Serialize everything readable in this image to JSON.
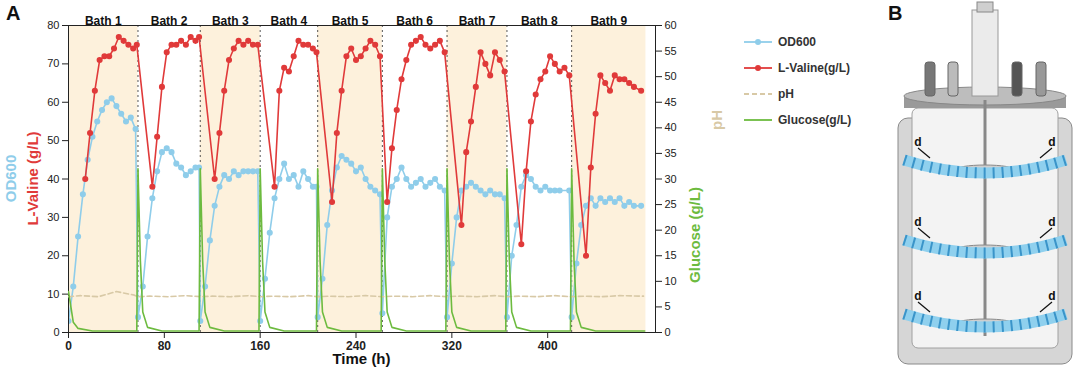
{
  "chart_data": {
    "type": "line",
    "panel_label": "A",
    "x_label": "Time (h)",
    "y_labels": [
      {
        "text": "OD600",
        "color": "#8fcdea"
      },
      {
        "text": "L-Valine (g/L)",
        "color": "#e03a3a"
      }
    ],
    "y2_labels": [
      {
        "text": "Glucose (g/L)",
        "color": "#6dbb3f"
      },
      {
        "text": "pH",
        "color": "#d8c9a6"
      }
    ],
    "xlim": [
      0,
      490
    ],
    "xticks": [
      0,
      80,
      160,
      240,
      320,
      400
    ],
    "ylim": [
      0,
      80
    ],
    "yticks": [
      0,
      10,
      20,
      30,
      40,
      50,
      60,
      70,
      80
    ],
    "y2lim": [
      0,
      60
    ],
    "y2ticks": [
      0,
      5,
      10,
      15,
      20,
      25,
      30,
      35,
      40,
      45,
      50,
      55,
      60
    ],
    "legend": "right",
    "batches": [
      {
        "label": "Bath 1",
        "start": 0,
        "end": 58
      },
      {
        "label": "Bath 2",
        "start": 58,
        "end": 110
      },
      {
        "label": "Bath 3",
        "start": 110,
        "end": 160
      },
      {
        "label": "Bath 4",
        "start": 160,
        "end": 208
      },
      {
        "label": "Bath 5",
        "start": 208,
        "end": 262
      },
      {
        "label": "Bath 6",
        "start": 262,
        "end": 316
      },
      {
        "label": "Bath 7",
        "start": 316,
        "end": 366
      },
      {
        "label": "Bath 8",
        "start": 366,
        "end": 420
      },
      {
        "label": "Bath 9",
        "start": 420,
        "end": 482
      }
    ],
    "series": [
      {
        "name": "OD600",
        "color": "#8fcdea",
        "marker": "circle",
        "line_style": "solid",
        "x": [
          0,
          4,
          8,
          12,
          16,
          20,
          24,
          28,
          32,
          36,
          40,
          44,
          48,
          52,
          56,
          58,
          62,
          66,
          70,
          74,
          78,
          82,
          86,
          90,
          94,
          98,
          102,
          106,
          109,
          110,
          114,
          118,
          122,
          126,
          130,
          134,
          138,
          142,
          146,
          150,
          154,
          158,
          160,
          164,
          168,
          172,
          176,
          180,
          184,
          188,
          192,
          196,
          200,
          204,
          207,
          208,
          212,
          216,
          220,
          224,
          228,
          232,
          236,
          240,
          244,
          248,
          252,
          256,
          260,
          262,
          266,
          270,
          274,
          278,
          282,
          286,
          290,
          294,
          298,
          302,
          306,
          310,
          314,
          316,
          320,
          324,
          328,
          332,
          336,
          340,
          344,
          348,
          352,
          356,
          360,
          364,
          366,
          370,
          374,
          378,
          382,
          386,
          390,
          394,
          398,
          402,
          406,
          410,
          418,
          420,
          424,
          428,
          432,
          436,
          440,
          444,
          448,
          452,
          456,
          460,
          464,
          468,
          472,
          478
        ],
        "values": [
          3,
          12,
          25,
          36,
          45,
          51,
          55,
          58,
          60,
          61,
          59,
          57,
          55,
          56,
          53,
          4,
          12,
          25,
          35,
          42,
          47,
          48,
          47,
          44,
          43,
          41,
          42,
          43,
          43,
          3,
          12,
          24,
          33,
          38,
          41,
          40,
          42,
          41,
          42,
          42,
          42,
          42,
          3,
          14,
          26,
          35,
          40,
          44,
          40,
          41,
          38,
          42,
          40,
          38,
          38,
          4,
          14,
          28,
          37,
          43,
          46,
          45,
          44,
          42,
          43,
          40,
          38,
          37,
          36,
          5,
          30,
          38,
          40,
          43,
          40,
          38,
          39,
          40,
          38,
          39,
          40,
          38,
          37,
          4,
          18,
          30,
          37,
          38,
          39,
          38,
          37,
          36,
          37,
          36,
          36,
          35,
          4,
          20,
          28,
          38,
          41,
          40,
          38,
          37,
          38,
          37,
          37,
          37,
          37,
          4,
          18,
          28,
          33,
          35,
          33,
          35,
          34,
          35,
          34,
          35,
          33,
          34,
          33,
          33
        ]
      },
      {
        "name": "L-Valine(g/L)",
        "color": "#e03a3a",
        "marker": "circle",
        "line_style": "solid",
        "x": [
          14,
          18,
          22,
          26,
          30,
          34,
          38,
          42,
          46,
          50,
          54,
          57,
          70,
          74,
          78,
          82,
          86,
          90,
          94,
          98,
          102,
          106,
          109,
          122,
          126,
          130,
          134,
          138,
          142,
          146,
          150,
          154,
          158,
          172,
          176,
          180,
          184,
          188,
          192,
          196,
          200,
          204,
          207,
          220,
          224,
          228,
          232,
          236,
          240,
          244,
          248,
          252,
          256,
          260,
          266,
          270,
          274,
          278,
          282,
          286,
          290,
          294,
          298,
          302,
          306,
          310,
          314,
          328,
          332,
          336,
          340,
          344,
          348,
          352,
          356,
          360,
          364,
          378,
          382,
          386,
          390,
          394,
          398,
          402,
          406,
          410,
          414,
          418,
          432,
          436,
          440,
          444,
          448,
          452,
          456,
          460,
          464,
          468,
          472,
          478
        ],
        "values": [
          40,
          52,
          63,
          71,
          72,
          72,
          74,
          77,
          76,
          75,
          74,
          75,
          38,
          51,
          64,
          73,
          75,
          75,
          76,
          75,
          77,
          76,
          77,
          40,
          52,
          63,
          71,
          74,
          76,
          75,
          76,
          75,
          75,
          38,
          63,
          69,
          68,
          72,
          76,
          75,
          75,
          74,
          73,
          34,
          52,
          63,
          72,
          74,
          71,
          72,
          74,
          76,
          75,
          72,
          34,
          48,
          58,
          66,
          71,
          75,
          76,
          77,
          75,
          74,
          75,
          76,
          73,
          28,
          47,
          55,
          64,
          73,
          70,
          67,
          73,
          71,
          68,
          23,
          42,
          55,
          62,
          66,
          68,
          72,
          70,
          68,
          69,
          67,
          20,
          43,
          57,
          67,
          65,
          63,
          67,
          66,
          66,
          65,
          64,
          63
        ]
      },
      {
        "name": "pH",
        "color": "#d8c9a6",
        "axis": "y2",
        "marker": "none",
        "line_style": "dashed",
        "x": [
          0,
          10,
          25,
          40,
          55,
          58,
          68,
          83,
          98,
          110,
          120,
          135,
          150,
          160,
          170,
          185,
          200,
          208,
          218,
          233,
          248,
          262,
          272,
          287,
          302,
          316,
          326,
          341,
          356,
          366,
          376,
          391,
          406,
          420,
          430,
          445,
          460,
          480
        ],
        "values": [
          7,
          7.2,
          7,
          8,
          7.3,
          7,
          7.1,
          7,
          7.2,
          7,
          7.1,
          7,
          7.2,
          7,
          7.1,
          7,
          7.2,
          7,
          7.1,
          7,
          7.2,
          7,
          7.1,
          7,
          7.2,
          7,
          7.1,
          7,
          7.2,
          7,
          7.1,
          7,
          7.2,
          7,
          7.1,
          7,
          7.2,
          7.1
        ]
      },
      {
        "name": "Glucose(g/L)",
        "color": "#6dbb3f",
        "axis": "y2",
        "marker": "none",
        "line_style": "solid",
        "x": [
          0,
          2,
          4,
          8,
          20,
          57,
          58,
          60,
          62,
          66,
          78,
          109,
          110,
          112,
          114,
          118,
          130,
          159,
          160,
          162,
          164,
          168,
          180,
          207,
          208,
          210,
          212,
          216,
          228,
          261,
          262,
          264,
          266,
          270,
          282,
          315,
          316,
          318,
          320,
          324,
          336,
          365,
          366,
          368,
          370,
          374,
          386,
          419,
          420,
          422,
          424,
          428,
          440,
          481
        ],
        "values": [
          8,
          5,
          2,
          0.8,
          0.3,
          0.3,
          32,
          14,
          4,
          1,
          0.3,
          0.3,
          32,
          14,
          4,
          1,
          0.3,
          0.3,
          32,
          14,
          4,
          1,
          0.3,
          0.3,
          32,
          14,
          4,
          1,
          0.3,
          0.3,
          32,
          14,
          4,
          1,
          0.3,
          0.3,
          32,
          14,
          4,
          1,
          0.3,
          0.3,
          32,
          14,
          4,
          1,
          0.3,
          0.3,
          32,
          14,
          4,
          1,
          0.3,
          0.3
        ]
      }
    ]
  },
  "diagram": {
    "panel_label": "B",
    "labels": [
      "d",
      "d",
      "d",
      "d",
      "d",
      "d"
    ]
  }
}
